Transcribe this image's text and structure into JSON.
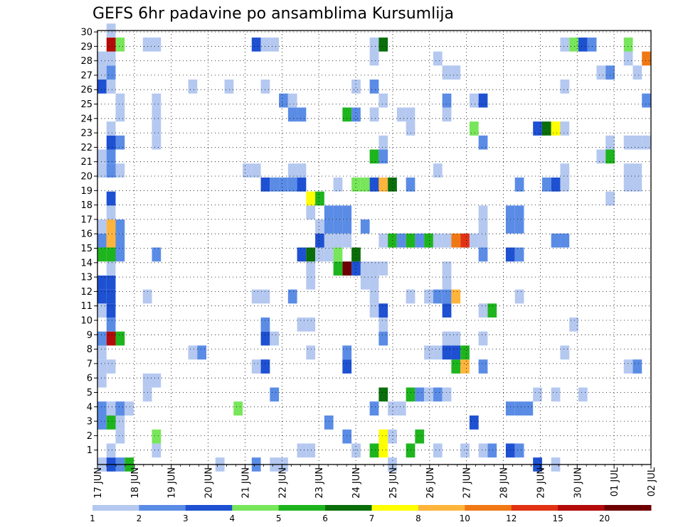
{
  "chart_data": {
    "type": "heatmap",
    "title": "GEFS 6hr padavine po ansamblima Kursumlija",
    "xlabel": "",
    "ylabel": "",
    "x_tick_labels": [
      "17 JUN",
      "18 JUN",
      "19 JUN",
      "20 JUN",
      "21 JUN",
      "22 JUN",
      "23 JUN",
      "24 JUN",
      "25 JUN",
      "26 JUN",
      "27 JUN",
      "28 JUN",
      "29 JUN",
      "30 JUN",
      "01 JUL",
      "02 JUL"
    ],
    "y_tick_labels": [
      "1",
      "2",
      "3",
      "4",
      "5",
      "6",
      "7",
      "8",
      "9",
      "10",
      "11",
      "12",
      "13",
      "14",
      "15",
      "16",
      "17",
      "18",
      "19",
      "20",
      "21",
      "22",
      "23",
      "24",
      "25",
      "26",
      "27",
      "28",
      "29",
      "30"
    ],
    "y_range": [
      0,
      30
    ],
    "x_steps": 61,
    "grid": true,
    "legend_levels": [
      "1",
      "2",
      "3",
      "4",
      "5",
      "6",
      "7",
      "8",
      "10",
      "12",
      "15",
      "20"
    ],
    "legend_colors": [
      "#b4c8f0",
      "#5a8ce6",
      "#1e50d2",
      "#78e65a",
      "#1eb41e",
      "#0a6e0a",
      "#ffff00",
      "#ffb43c",
      "#f07814",
      "#e13214",
      "#b40a0a",
      "#6e0000"
    ],
    "cells": [
      [
        0,
        0,
        1
      ],
      [
        1,
        0,
        3
      ],
      [
        2,
        0,
        2
      ],
      [
        3,
        0,
        5
      ],
      [
        13,
        0,
        1
      ],
      [
        17,
        0,
        2
      ],
      [
        19,
        0,
        1
      ],
      [
        20,
        0,
        1
      ],
      [
        32,
        0,
        1
      ],
      [
        48,
        0,
        3
      ],
      [
        50,
        0,
        1
      ],
      [
        1,
        1,
        1
      ],
      [
        6,
        1,
        1
      ],
      [
        22,
        1,
        1
      ],
      [
        23,
        1,
        1
      ],
      [
        28,
        1,
        1
      ],
      [
        30,
        1,
        5
      ],
      [
        31,
        1,
        7
      ],
      [
        34,
        1,
        5
      ],
      [
        37,
        1,
        1
      ],
      [
        40,
        1,
        1
      ],
      [
        42,
        1,
        1
      ],
      [
        43,
        1,
        2
      ],
      [
        45,
        1,
        3
      ],
      [
        46,
        1,
        2
      ],
      [
        2,
        2,
        1
      ],
      [
        6,
        2,
        4
      ],
      [
        27,
        2,
        2
      ],
      [
        31,
        2,
        7
      ],
      [
        32,
        2,
        1
      ],
      [
        35,
        2,
        5
      ],
      [
        0,
        3,
        2
      ],
      [
        1,
        3,
        5
      ],
      [
        2,
        3,
        1
      ],
      [
        25,
        3,
        2
      ],
      [
        41,
        3,
        3
      ],
      [
        0,
        4,
        2
      ],
      [
        1,
        4,
        1
      ],
      [
        2,
        4,
        2
      ],
      [
        3,
        4,
        1
      ],
      [
        15,
        4,
        4
      ],
      [
        30,
        4,
        2
      ],
      [
        32,
        4,
        1
      ],
      [
        33,
        4,
        1
      ],
      [
        45,
        4,
        2
      ],
      [
        46,
        4,
        2
      ],
      [
        47,
        4,
        2
      ],
      [
        5,
        5,
        1
      ],
      [
        19,
        5,
        2
      ],
      [
        31,
        5,
        6
      ],
      [
        34,
        5,
        5
      ],
      [
        35,
        5,
        2
      ],
      [
        36,
        5,
        1
      ],
      [
        37,
        5,
        2
      ],
      [
        38,
        5,
        1
      ],
      [
        48,
        5,
        1
      ],
      [
        50,
        5,
        1
      ],
      [
        53,
        5,
        1
      ],
      [
        0,
        6,
        1
      ],
      [
        5,
        6,
        1
      ],
      [
        6,
        6,
        1
      ],
      [
        0,
        7,
        1
      ],
      [
        1,
        7,
        1
      ],
      [
        17,
        7,
        1
      ],
      [
        18,
        7,
        3
      ],
      [
        27,
        7,
        3
      ],
      [
        39,
        7,
        5
      ],
      [
        40,
        7,
        8
      ],
      [
        42,
        7,
        2
      ],
      [
        58,
        7,
        1
      ],
      [
        59,
        7,
        2
      ],
      [
        0,
        8,
        1
      ],
      [
        10,
        8,
        1
      ],
      [
        11,
        8,
        2
      ],
      [
        23,
        8,
        1
      ],
      [
        27,
        8,
        2
      ],
      [
        36,
        8,
        1
      ],
      [
        37,
        8,
        1
      ],
      [
        38,
        8,
        3
      ],
      [
        39,
        8,
        3
      ],
      [
        40,
        8,
        5
      ],
      [
        51,
        8,
        1
      ],
      [
        0,
        9,
        2
      ],
      [
        1,
        9,
        11
      ],
      [
        2,
        9,
        5
      ],
      [
        18,
        9,
        3
      ],
      [
        19,
        9,
        1
      ],
      [
        31,
        9,
        2
      ],
      [
        38,
        9,
        1
      ],
      [
        39,
        9,
        1
      ],
      [
        42,
        9,
        1
      ],
      [
        1,
        10,
        2
      ],
      [
        18,
        10,
        2
      ],
      [
        22,
        10,
        1
      ],
      [
        23,
        10,
        1
      ],
      [
        31,
        10,
        1
      ],
      [
        52,
        10,
        1
      ],
      [
        0,
        11,
        1
      ],
      [
        1,
        11,
        3
      ],
      [
        30,
        11,
        1
      ],
      [
        31,
        11,
        3
      ],
      [
        38,
        11,
        3
      ],
      [
        42,
        11,
        1
      ],
      [
        43,
        11,
        5
      ],
      [
        0,
        12,
        3
      ],
      [
        1,
        12,
        3
      ],
      [
        5,
        12,
        1
      ],
      [
        17,
        12,
        1
      ],
      [
        18,
        12,
        1
      ],
      [
        21,
        12,
        2
      ],
      [
        30,
        12,
        1
      ],
      [
        34,
        12,
        1
      ],
      [
        36,
        12,
        1
      ],
      [
        37,
        12,
        2
      ],
      [
        38,
        12,
        2
      ],
      [
        39,
        12,
        8
      ],
      [
        46,
        12,
        1
      ],
      [
        0,
        13,
        3
      ],
      [
        1,
        13,
        3
      ],
      [
        23,
        13,
        1
      ],
      [
        29,
        13,
        1
      ],
      [
        30,
        13,
        1
      ],
      [
        38,
        13,
        1
      ],
      [
        1,
        14,
        1
      ],
      [
        23,
        14,
        1
      ],
      [
        26,
        14,
        5
      ],
      [
        27,
        14,
        12
      ],
      [
        28,
        14,
        3
      ],
      [
        29,
        14,
        1
      ],
      [
        30,
        14,
        1
      ],
      [
        31,
        14,
        1
      ],
      [
        38,
        14,
        1
      ],
      [
        0,
        15,
        5
      ],
      [
        1,
        15,
        5
      ],
      [
        2,
        15,
        2
      ],
      [
        6,
        15,
        2
      ],
      [
        22,
        15,
        3
      ],
      [
        23,
        15,
        6
      ],
      [
        24,
        15,
        1
      ],
      [
        25,
        15,
        1
      ],
      [
        26,
        15,
        4
      ],
      [
        28,
        15,
        6
      ],
      [
        42,
        15,
        2
      ],
      [
        45,
        15,
        3
      ],
      [
        46,
        15,
        2
      ],
      [
        0,
        16,
        2
      ],
      [
        1,
        16,
        8
      ],
      [
        2,
        16,
        2
      ],
      [
        24,
        16,
        3
      ],
      [
        25,
        16,
        1
      ],
      [
        26,
        16,
        1
      ],
      [
        27,
        16,
        1
      ],
      [
        31,
        16,
        1
      ],
      [
        32,
        16,
        5
      ],
      [
        33,
        16,
        2
      ],
      [
        34,
        16,
        5
      ],
      [
        35,
        16,
        2
      ],
      [
        36,
        16,
        5
      ],
      [
        37,
        16,
        1
      ],
      [
        38,
        16,
        1
      ],
      [
        39,
        16,
        9
      ],
      [
        40,
        16,
        10
      ],
      [
        41,
        16,
        1
      ],
      [
        42,
        16,
        1
      ],
      [
        50,
        16,
        2
      ],
      [
        51,
        16,
        2
      ],
      [
        0,
        17,
        1
      ],
      [
        1,
        17,
        8
      ],
      [
        2,
        17,
        2
      ],
      [
        24,
        17,
        1
      ],
      [
        25,
        17,
        2
      ],
      [
        26,
        17,
        2
      ],
      [
        27,
        17,
        2
      ],
      [
        29,
        17,
        2
      ],
      [
        42,
        17,
        1
      ],
      [
        45,
        17,
        2
      ],
      [
        46,
        17,
        2
      ],
      [
        1,
        18,
        1
      ],
      [
        23,
        18,
        1
      ],
      [
        25,
        18,
        2
      ],
      [
        26,
        18,
        2
      ],
      [
        27,
        18,
        2
      ],
      [
        42,
        18,
        1
      ],
      [
        45,
        18,
        2
      ],
      [
        46,
        18,
        2
      ],
      [
        1,
        19,
        3
      ],
      [
        23,
        19,
        7
      ],
      [
        24,
        19,
        5
      ],
      [
        56,
        19,
        1
      ],
      [
        18,
        20,
        3
      ],
      [
        19,
        20,
        2
      ],
      [
        20,
        20,
        2
      ],
      [
        21,
        20,
        2
      ],
      [
        22,
        20,
        3
      ],
      [
        26,
        20,
        1
      ],
      [
        28,
        20,
        4
      ],
      [
        29,
        20,
        4
      ],
      [
        30,
        20,
        3
      ],
      [
        31,
        20,
        8
      ],
      [
        32,
        20,
        6
      ],
      [
        34,
        20,
        2
      ],
      [
        46,
        20,
        2
      ],
      [
        49,
        20,
        2
      ],
      [
        50,
        20,
        3
      ],
      [
        51,
        20,
        1
      ],
      [
        58,
        20,
        1
      ],
      [
        59,
        20,
        1
      ],
      [
        0,
        21,
        1
      ],
      [
        1,
        21,
        2
      ],
      [
        2,
        21,
        1
      ],
      [
        16,
        21,
        1
      ],
      [
        17,
        21,
        1
      ],
      [
        21,
        21,
        1
      ],
      [
        22,
        21,
        1
      ],
      [
        37,
        21,
        1
      ],
      [
        51,
        21,
        1
      ],
      [
        58,
        21,
        1
      ],
      [
        59,
        21,
        1
      ],
      [
        0,
        22,
        1
      ],
      [
        1,
        22,
        2
      ],
      [
        30,
        22,
        5
      ],
      [
        31,
        22,
        2
      ],
      [
        55,
        22,
        1
      ],
      [
        56,
        22,
        5
      ],
      [
        1,
        23,
        3
      ],
      [
        2,
        23,
        2
      ],
      [
        6,
        23,
        1
      ],
      [
        31,
        23,
        1
      ],
      [
        42,
        23,
        2
      ],
      [
        56,
        23,
        1
      ],
      [
        58,
        23,
        1
      ],
      [
        59,
        23,
        1
      ],
      [
        60,
        23,
        1
      ],
      [
        1,
        24,
        1
      ],
      [
        6,
        24,
        1
      ],
      [
        34,
        24,
        1
      ],
      [
        48,
        24,
        3
      ],
      [
        49,
        24,
        6
      ],
      [
        50,
        24,
        7
      ],
      [
        51,
        24,
        1
      ],
      [
        41,
        24,
        4
      ],
      [
        2,
        25,
        1
      ],
      [
        6,
        25,
        1
      ],
      [
        21,
        25,
        2
      ],
      [
        22,
        25,
        2
      ],
      [
        27,
        25,
        5
      ],
      [
        28,
        25,
        2
      ],
      [
        30,
        25,
        1
      ],
      [
        33,
        25,
        1
      ],
      [
        34,
        25,
        1
      ],
      [
        38,
        25,
        1
      ],
      [
        2,
        26,
        1
      ],
      [
        6,
        26,
        1
      ],
      [
        20,
        26,
        2
      ],
      [
        21,
        26,
        1
      ],
      [
        31,
        26,
        1
      ],
      [
        38,
        26,
        2
      ],
      [
        41,
        26,
        1
      ],
      [
        42,
        26,
        3
      ],
      [
        60,
        26,
        2
      ],
      [
        0,
        27,
        3
      ],
      [
        1,
        27,
        1
      ],
      [
        10,
        27,
        1
      ],
      [
        14,
        27,
        1
      ],
      [
        18,
        27,
        1
      ],
      [
        28,
        27,
        1
      ],
      [
        30,
        27,
        2
      ],
      [
        51,
        27,
        1
      ],
      [
        0,
        28,
        1
      ],
      [
        1,
        28,
        2
      ],
      [
        38,
        28,
        1
      ],
      [
        39,
        28,
        1
      ],
      [
        55,
        28,
        1
      ],
      [
        56,
        28,
        2
      ],
      [
        59,
        28,
        1
      ],
      [
        0,
        29,
        1
      ],
      [
        1,
        29,
        1
      ],
      [
        30,
        29,
        1
      ],
      [
        37,
        29,
        1
      ],
      [
        58,
        29,
        1
      ],
      [
        60,
        29,
        9
      ],
      [
        1,
        30,
        11
      ],
      [
        2,
        30,
        4
      ],
      [
        5,
        30,
        1
      ],
      [
        6,
        30,
        1
      ],
      [
        17,
        30,
        3
      ],
      [
        18,
        30,
        1
      ],
      [
        19,
        30,
        1
      ],
      [
        30,
        30,
        1
      ],
      [
        31,
        30,
        6
      ],
      [
        51,
        30,
        1
      ],
      [
        52,
        30,
        4
      ],
      [
        53,
        30,
        3
      ],
      [
        54,
        30,
        2
      ],
      [
        58,
        30,
        4
      ],
      [
        1,
        31,
        1
      ]
    ]
  }
}
